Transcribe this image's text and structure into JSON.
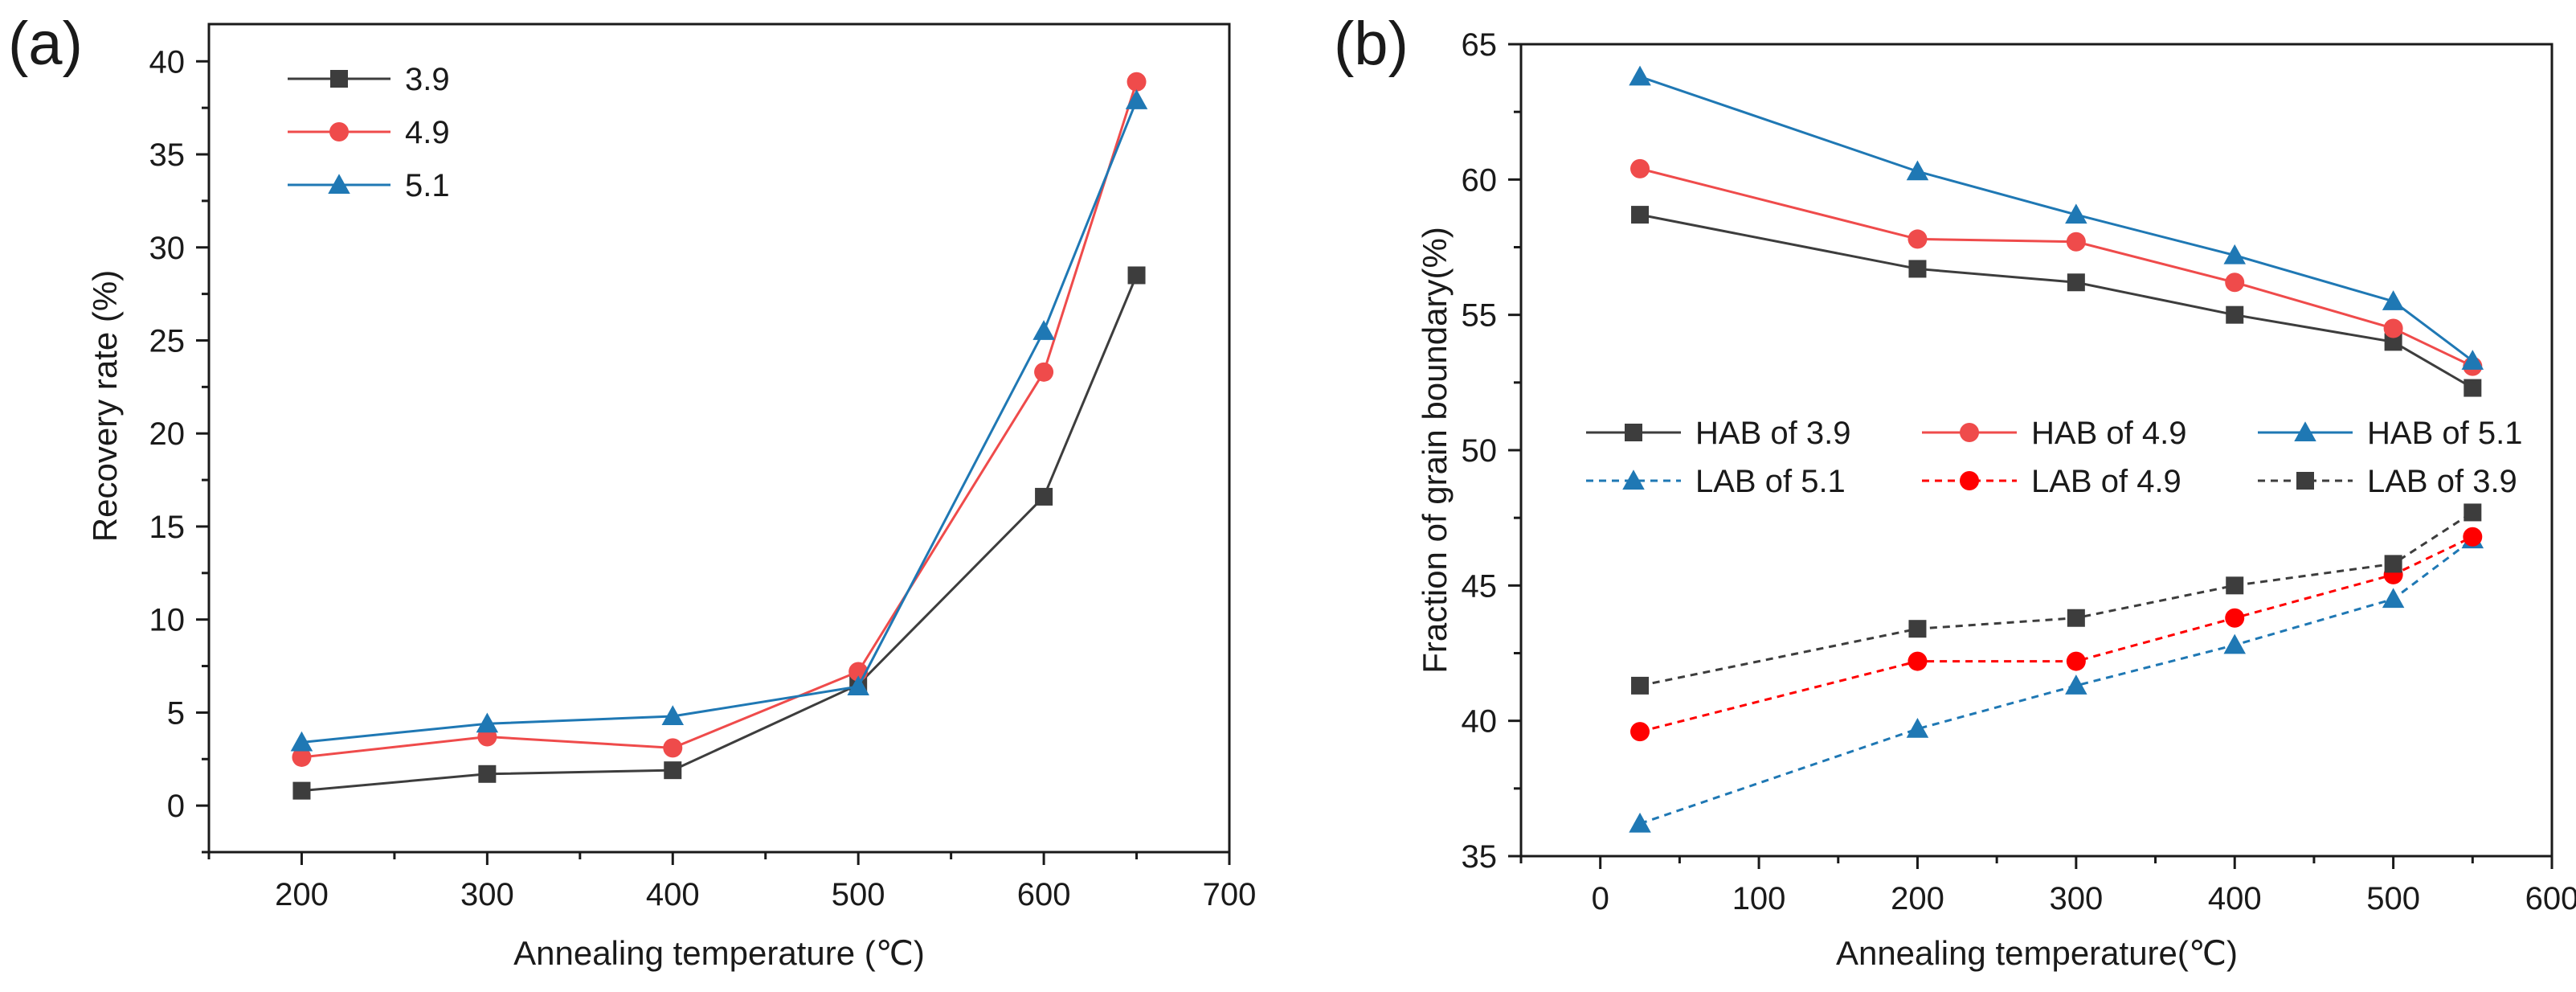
{
  "chart_data": [
    {
      "type": "line",
      "panel_label": "(a)",
      "xlabel": "Annealing temperature (℃)",
      "ylabel": "Recovery rate (%)",
      "xlim": [
        150,
        700
      ],
      "ylim": [
        -2.5,
        42
      ],
      "xticks": [
        "200",
        "300",
        "400",
        "500",
        "600",
        "700"
      ],
      "yticks": [
        "0",
        "5",
        "10",
        "15",
        "20",
        "25",
        "30",
        "35",
        "40"
      ],
      "legend_position": "top-left",
      "series": [
        {
          "name": "3.9",
          "color": "#3d3d3d",
          "marker": "square",
          "dashed": false,
          "x": [
            200,
            300,
            400,
            500,
            600,
            650
          ],
          "y": [
            0.8,
            1.7,
            1.9,
            6.5,
            16.6,
            28.5
          ]
        },
        {
          "name": "4.9",
          "color": "#ef4b4b",
          "marker": "circle",
          "dashed": false,
          "x": [
            200,
            300,
            400,
            500,
            600,
            650
          ],
          "y": [
            2.6,
            3.7,
            3.1,
            7.2,
            23.3,
            38.9
          ]
        },
        {
          "name": "5.1",
          "color": "#1f78b4",
          "marker": "triangle",
          "dashed": false,
          "x": [
            200,
            300,
            400,
            500,
            600,
            650
          ],
          "y": [
            3.4,
            4.4,
            4.8,
            6.4,
            25.5,
            37.9
          ]
        }
      ]
    },
    {
      "type": "line",
      "panel_label": "(b)",
      "xlabel": "Annealing temperature(℃)",
      "ylabel": "Fraction of grain boundary(%)",
      "xlim": [
        -50,
        600
      ],
      "ylim": [
        35,
        65
      ],
      "xticks": [
        "0",
        "100",
        "200",
        "300",
        "400",
        "500",
        "600"
      ],
      "yticks": [
        "35",
        "40",
        "45",
        "50",
        "55",
        "60",
        "65"
      ],
      "legend_position": "middle",
      "series": [
        {
          "name": "HAB of 3.9",
          "color": "#3d3d3d",
          "marker": "square",
          "dashed": false,
          "x": [
            25,
            200,
            300,
            400,
            500,
            550
          ],
          "y": [
            58.7,
            56.7,
            56.2,
            55.0,
            54.0,
            52.3
          ]
        },
        {
          "name": "HAB of 4.9",
          "color": "#ef4b4b",
          "marker": "circle",
          "dashed": false,
          "x": [
            25,
            200,
            300,
            400,
            500,
            550
          ],
          "y": [
            60.4,
            57.8,
            57.7,
            56.2,
            54.5,
            53.1
          ]
        },
        {
          "name": "HAB of 5.1",
          "color": "#1f78b4",
          "marker": "triangle",
          "dashed": false,
          "x": [
            25,
            200,
            300,
            400,
            500,
            550
          ],
          "y": [
            63.8,
            60.3,
            58.7,
            57.2,
            55.5,
            53.3
          ]
        },
        {
          "name": "LAB of 5.1",
          "color": "#1f78b4",
          "marker": "triangle",
          "dashed": true,
          "x": [
            25,
            200,
            300,
            400,
            500,
            550
          ],
          "y": [
            36.2,
            39.7,
            41.3,
            42.8,
            44.5,
            46.7
          ]
        },
        {
          "name": "LAB of 4.9",
          "color": "#ff0000",
          "marker": "circle",
          "dashed": true,
          "x": [
            25,
            200,
            300,
            400,
            500,
            550
          ],
          "y": [
            39.6,
            42.2,
            42.2,
            43.8,
            45.4,
            46.8
          ]
        },
        {
          "name": "LAB of 3.9",
          "color": "#3d3d3d",
          "marker": "square",
          "dashed": true,
          "x": [
            25,
            200,
            300,
            400,
            500,
            550
          ],
          "y": [
            41.3,
            43.4,
            43.8,
            45.0,
            45.8,
            47.7
          ]
        }
      ]
    }
  ]
}
